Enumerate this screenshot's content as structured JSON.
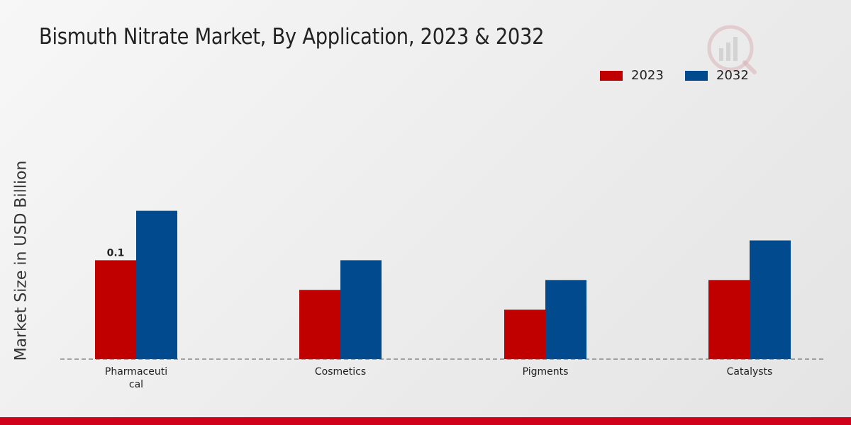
{
  "chart_data": {
    "type": "bar",
    "title": "Bismuth Nitrate Market, By Application, 2023 & 2032",
    "ylabel": "Market Size in USD Billion",
    "xlabel": "",
    "categories": [
      "Pharmaceutical",
      "Cosmetics",
      "Pigments",
      "Catalysts"
    ],
    "tick_labels": [
      [
        "Pharmaceuti",
        "cal"
      ],
      [
        "Cosmetics"
      ],
      [
        "Pigments"
      ],
      [
        "Catalysts"
      ]
    ],
    "series": [
      {
        "name": "2023",
        "color": "#c00000",
        "values": [
          0.1,
          0.07,
          0.05,
          0.08
        ]
      },
      {
        "name": "2032",
        "color": "#004a8d",
        "values": [
          0.15,
          0.1,
          0.08,
          0.12
        ]
      }
    ],
    "data_labels": [
      {
        "series": 0,
        "index": 0,
        "text": "0.1"
      }
    ],
    "ylim": [
      0,
      0.25
    ],
    "grid": false,
    "legend_position": "top-right"
  }
}
